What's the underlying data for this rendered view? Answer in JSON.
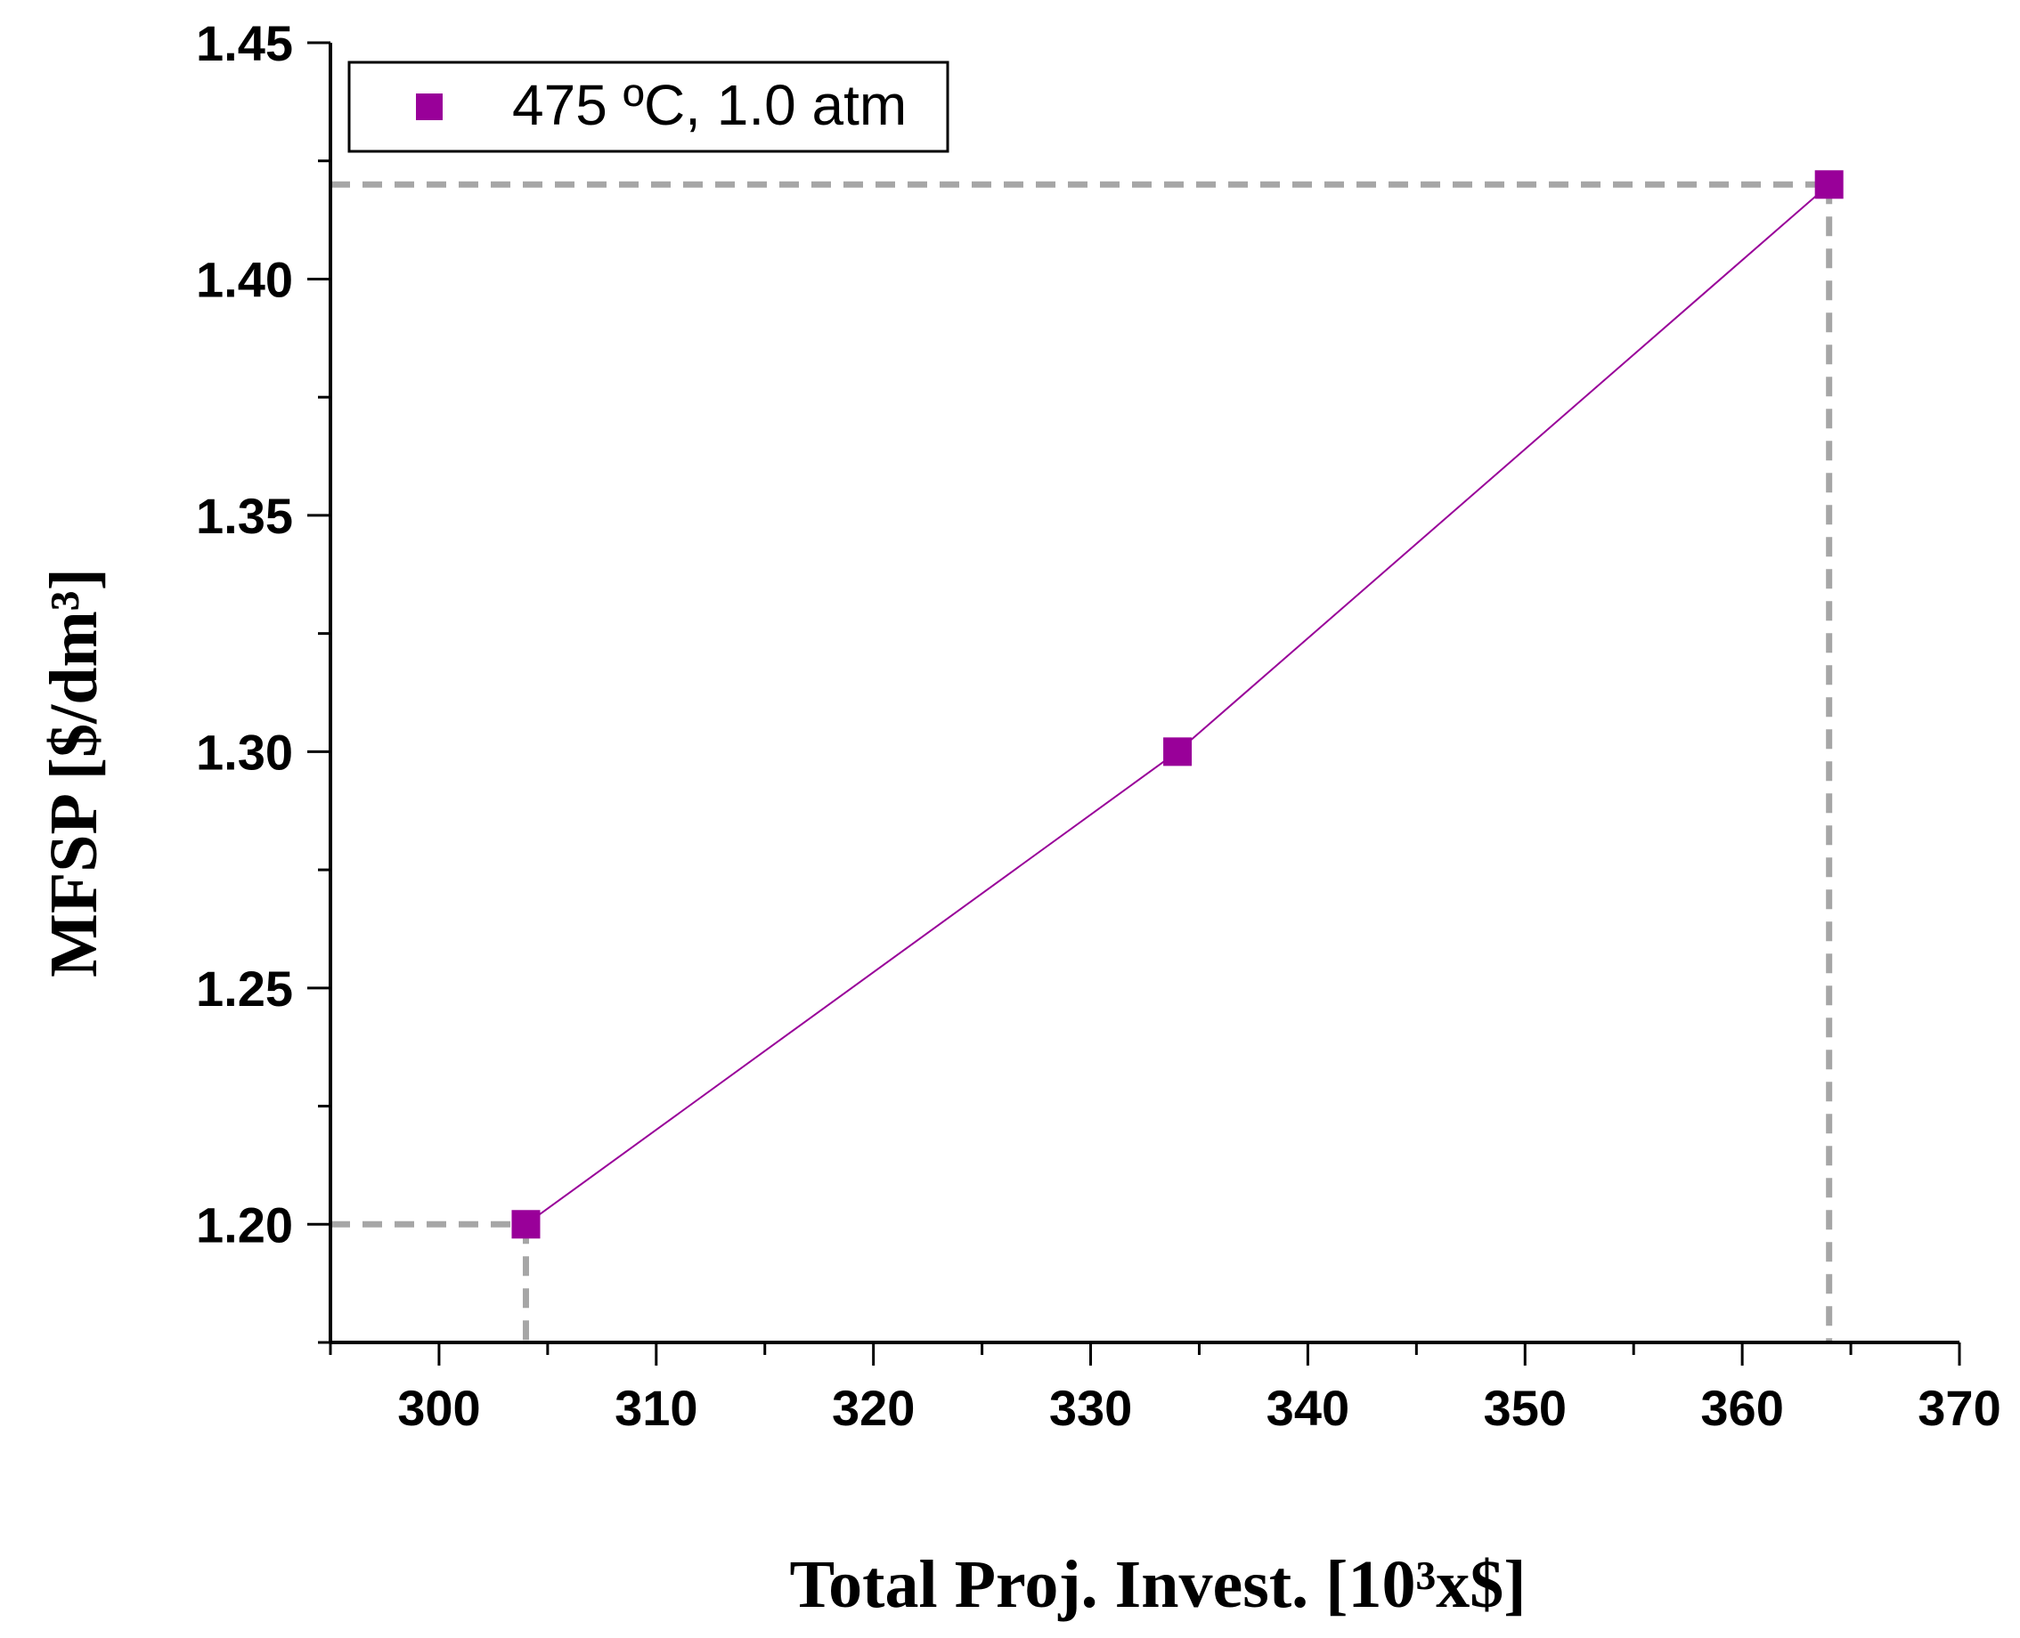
{
  "chart_data": {
    "type": "line",
    "title": "",
    "xlabel": "Total Proj. Invest. [10³x$]",
    "ylabel": "MFSP [$/dm³]",
    "xlim": [
      295,
      370
    ],
    "ylim": [
      1.175,
      1.45
    ],
    "x_ticks": [
      300,
      310,
      320,
      330,
      340,
      350,
      360,
      370
    ],
    "y_ticks": [
      1.2,
      1.25,
      1.3,
      1.35,
      1.4,
      1.45
    ],
    "x_tick_labels": [
      "300",
      "310",
      "320",
      "330",
      "340",
      "350",
      "360",
      "370"
    ],
    "y_tick_labels": [
      "1.20",
      "1.25",
      "1.30",
      "1.35",
      "1.40",
      "1.45"
    ],
    "grid": false,
    "legend_position": "top-left",
    "series": [
      {
        "name": "475 ºC, 1.0 atm",
        "color": "#990099",
        "marker": "square",
        "x": [
          304,
          334,
          364
        ],
        "y": [
          1.2,
          1.3,
          1.42
        ]
      }
    ],
    "reference_lines": [
      {
        "style": "dashed",
        "color": "#a6a6a6",
        "x": 304,
        "y": 1.2
      },
      {
        "style": "dashed",
        "color": "#a6a6a6",
        "x": 364,
        "y": 1.42
      }
    ]
  }
}
